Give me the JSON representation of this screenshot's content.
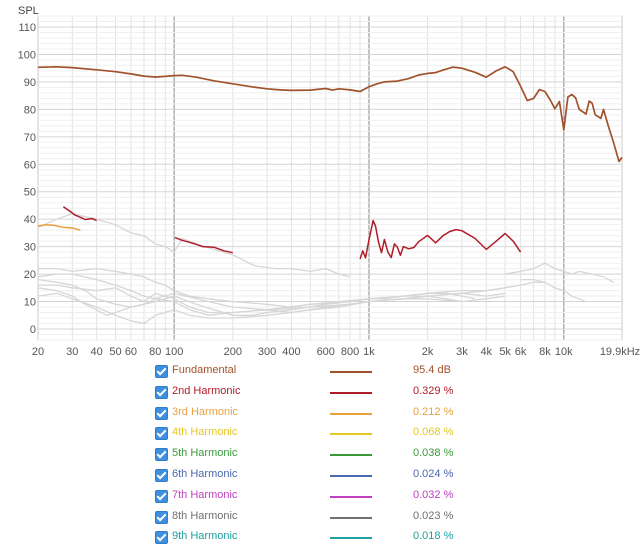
{
  "chart_data": {
    "type": "line",
    "title": "",
    "ylabel": "SPL",
    "xlabel": "",
    "x_scale": "log",
    "xlim": [
      20,
      19900
    ],
    "ylim": [
      -4,
      114
    ],
    "grid": true,
    "x_ticks": [
      {
        "v": 20,
        "label": "20"
      },
      {
        "v": 30,
        "label": "30"
      },
      {
        "v": 40,
        "label": "40"
      },
      {
        "v": 50,
        "label": "50"
      },
      {
        "v": 60,
        "label": "60"
      },
      {
        "v": 80,
        "label": "80"
      },
      {
        "v": 100,
        "label": "100"
      },
      {
        "v": 200,
        "label": "200"
      },
      {
        "v": 300,
        "label": "300"
      },
      {
        "v": 400,
        "label": "400"
      },
      {
        "v": 600,
        "label": "600"
      },
      {
        "v": 800,
        "label": "800"
      },
      {
        "v": 1000,
        "label": "1k"
      },
      {
        "v": 2000,
        "label": "2k"
      },
      {
        "v": 3000,
        "label": "3k"
      },
      {
        "v": 4000,
        "label": "4k"
      },
      {
        "v": 5000,
        "label": "5k"
      },
      {
        "v": 6000,
        "label": "6k"
      },
      {
        "v": 8000,
        "label": "8k"
      },
      {
        "v": 10000,
        "label": "10k"
      },
      {
        "v": 19900,
        "label": "19.9kHz"
      }
    ],
    "y_ticks": [
      0,
      10,
      20,
      30,
      40,
      50,
      60,
      70,
      80,
      90,
      100,
      110
    ],
    "series": [
      {
        "name": "Fundamental",
        "color": "#a0522d",
        "value_text": "95.4 dB",
        "points": [
          [
            20,
            95.3
          ],
          [
            25,
            95.5
          ],
          [
            30,
            95.2
          ],
          [
            40,
            94.4
          ],
          [
            50,
            93.7
          ],
          [
            60,
            92.9
          ],
          [
            70,
            92.1
          ],
          [
            80,
            91.8
          ],
          [
            90,
            92.0
          ],
          [
            100,
            92.3
          ],
          [
            110,
            92.4
          ],
          [
            130,
            91.7
          ],
          [
            160,
            90.4
          ],
          [
            200,
            89.3
          ],
          [
            250,
            88.2
          ],
          [
            300,
            87.5
          ],
          [
            350,
            87.1
          ],
          [
            400,
            86.9
          ],
          [
            500,
            87.0
          ],
          [
            600,
            87.6
          ],
          [
            650,
            87.0
          ],
          [
            700,
            87.5
          ],
          [
            800,
            87.1
          ],
          [
            900,
            86.5
          ],
          [
            1000,
            88.2
          ],
          [
            1100,
            89.3
          ],
          [
            1200,
            90.0
          ],
          [
            1400,
            90.3
          ],
          [
            1600,
            91.2
          ],
          [
            1800,
            92.5
          ],
          [
            2000,
            93.1
          ],
          [
            2200,
            93.4
          ],
          [
            2400,
            94.3
          ],
          [
            2700,
            95.4
          ],
          [
            3000,
            95.0
          ],
          [
            3500,
            93.5
          ],
          [
            4000,
            91.7
          ],
          [
            4500,
            94.0
          ],
          [
            5000,
            95.5
          ],
          [
            5500,
            93.7
          ],
          [
            6000,
            88.4
          ],
          [
            6500,
            83.2
          ],
          [
            7000,
            84.0
          ],
          [
            7500,
            87.2
          ],
          [
            8000,
            86.5
          ],
          [
            8500,
            83.6
          ],
          [
            9000,
            80.2
          ],
          [
            9500,
            82.9
          ],
          [
            10000,
            72.5
          ],
          [
            10500,
            84.5
          ],
          [
            11000,
            85.4
          ],
          [
            11500,
            84.2
          ],
          [
            12000,
            80.0
          ],
          [
            13000,
            78.3
          ],
          [
            13500,
            83.0
          ],
          [
            14000,
            82.2
          ],
          [
            14500,
            78.0
          ],
          [
            15500,
            76.7
          ],
          [
            16000,
            80.0
          ],
          [
            17000,
            73.5
          ],
          [
            18000,
            68.0
          ],
          [
            19200,
            61.0
          ],
          [
            19900,
            62.5
          ]
        ]
      },
      {
        "name": "2nd Harmonic",
        "color": "#b01c28",
        "value_text": "0.329 %",
        "points": [
          [
            27,
            44.5
          ],
          [
            29,
            43.0
          ],
          [
            31,
            41.5
          ],
          [
            33,
            40.7
          ],
          [
            35,
            39.9
          ],
          [
            38,
            40.2
          ],
          [
            40,
            39.5
          ],
          [
            101,
            33.3
          ],
          [
            110,
            32.3
          ],
          [
            120,
            31.6
          ],
          [
            130,
            30.8
          ],
          [
            140,
            30.0
          ],
          [
            160,
            29.8
          ],
          [
            180,
            28.5
          ],
          [
            200,
            27.8
          ],
          [
            900,
            25.5
          ],
          [
            930,
            28.5
          ],
          [
            960,
            25.9
          ],
          [
            1000,
            32.5
          ],
          [
            1050,
            39.5
          ],
          [
            1080,
            37.5
          ],
          [
            1120,
            31.5
          ],
          [
            1160,
            27.8
          ],
          [
            1200,
            32.6
          ],
          [
            1250,
            28.0
          ],
          [
            1300,
            26.0
          ],
          [
            1350,
            31.0
          ],
          [
            1400,
            29.8
          ],
          [
            1450,
            26.8
          ],
          [
            1500,
            30.0
          ],
          [
            1600,
            29.2
          ],
          [
            1700,
            29.7
          ],
          [
            1800,
            31.8
          ],
          [
            2000,
            34.1
          ],
          [
            2200,
            31.4
          ],
          [
            2400,
            34.0
          ],
          [
            2600,
            35.5
          ],
          [
            2800,
            36.2
          ],
          [
            3000,
            35.8
          ],
          [
            3500,
            33.0
          ],
          [
            4000,
            29.0
          ],
          [
            4500,
            32.0
          ],
          [
            5000,
            34.8
          ],
          [
            5500,
            32.0
          ],
          [
            6000,
            28.0
          ]
        ]
      },
      {
        "name": "3rd Harmonic",
        "color": "#e8a040",
        "value_text": "0.212 %",
        "points": [
          [
            20,
            37.5
          ],
          [
            22,
            38.0
          ],
          [
            24,
            37.8
          ],
          [
            27,
            37.0
          ],
          [
            30,
            36.8
          ],
          [
            33,
            36.0
          ]
        ]
      },
      {
        "name": "4th Harmonic",
        "color": "#e5c820",
        "value_text": "0.068 %",
        "points": []
      },
      {
        "name": "5th Harmonic",
        "color": "#3a9a3a",
        "value_text": "0.038 %",
        "points": []
      },
      {
        "name": "6th Harmonic",
        "color": "#4a68b0",
        "value_text": "0.024 %",
        "points": []
      },
      {
        "name": "7th Harmonic",
        "color": "#c040c0",
        "value_text": "0.032 %",
        "points": []
      },
      {
        "name": "8th Harmonic",
        "color": "#707070",
        "value_text": "0.023 %",
        "points": []
      },
      {
        "name": "9th Harmonic",
        "color": "#20a0a0",
        "value_text": "0.018 %",
        "points": []
      }
    ],
    "background_traces": [
      [
        [
          20,
          37
        ],
        [
          25,
          40
        ],
        [
          30,
          42
        ],
        [
          40,
          40
        ],
        [
          50,
          38
        ],
        [
          60,
          35
        ],
        [
          70,
          34
        ],
        [
          80,
          31
        ],
        [
          90,
          30
        ],
        [
          100,
          28
        ],
        [
          110,
          33
        ],
        [
          130,
          31
        ],
        [
          160,
          29
        ],
        [
          200,
          27
        ],
        [
          260,
          23
        ],
        [
          330,
          22
        ],
        [
          400,
          22
        ],
        [
          500,
          21
        ],
        [
          600,
          22
        ],
        [
          700,
          20
        ],
        [
          800,
          19
        ]
      ],
      [
        [
          20,
          22
        ],
        [
          25,
          22
        ],
        [
          30,
          21
        ],
        [
          40,
          22
        ],
        [
          50,
          21
        ],
        [
          60,
          20
        ],
        [
          70,
          19
        ],
        [
          80,
          17
        ],
        [
          90,
          16
        ],
        [
          100,
          14
        ],
        [
          120,
          12
        ],
        [
          150,
          11
        ],
        [
          200,
          10
        ],
        [
          300,
          9
        ],
        [
          400,
          8
        ],
        [
          500,
          9
        ],
        [
          700,
          10
        ],
        [
          1000,
          11
        ],
        [
          1500,
          12
        ],
        [
          2000,
          13
        ],
        [
          3000,
          14
        ],
        [
          4000,
          14
        ],
        [
          5000,
          15
        ],
        [
          6000,
          16
        ],
        [
          7000,
          17
        ],
        [
          8000,
          17
        ]
      ],
      [
        [
          20,
          18
        ],
        [
          25,
          17
        ],
        [
          30,
          16
        ],
        [
          35,
          14
        ],
        [
          40,
          11
        ],
        [
          50,
          9
        ],
        [
          60,
          8
        ],
        [
          70,
          9
        ],
        [
          80,
          11
        ],
        [
          100,
          13
        ],
        [
          150,
          10
        ],
        [
          200,
          8
        ],
        [
          300,
          7
        ],
        [
          400,
          6
        ],
        [
          500,
          7
        ],
        [
          700,
          8
        ],
        [
          1000,
          10
        ],
        [
          1500,
          11
        ],
        [
          2000,
          12
        ],
        [
          3000,
          13
        ],
        [
          4000,
          12
        ],
        [
          5000,
          13
        ]
      ],
      [
        [
          20,
          15
        ],
        [
          25,
          14
        ],
        [
          30,
          12
        ],
        [
          35,
          9
        ],
        [
          40,
          7
        ],
        [
          45,
          5
        ],
        [
          50,
          6
        ],
        [
          60,
          8
        ],
        [
          80,
          10
        ],
        [
          100,
          12
        ],
        [
          130,
          9
        ],
        [
          160,
          7
        ],
        [
          200,
          5
        ],
        [
          250,
          5
        ],
        [
          300,
          6
        ],
        [
          400,
          7
        ],
        [
          600,
          9
        ],
        [
          800,
          10
        ],
        [
          1000,
          11
        ],
        [
          1500,
          12
        ],
        [
          2000,
          13
        ],
        [
          2500,
          13
        ],
        [
          3000,
          12
        ],
        [
          3500,
          11
        ]
      ],
      [
        [
          20,
          12
        ],
        [
          25,
          13
        ],
        [
          30,
          11
        ],
        [
          40,
          8
        ],
        [
          50,
          5
        ],
        [
          60,
          3
        ],
        [
          70,
          2
        ],
        [
          80,
          5
        ],
        [
          100,
          7
        ],
        [
          120,
          5
        ],
        [
          150,
          4
        ],
        [
          200,
          4
        ],
        [
          300,
          5
        ],
        [
          400,
          6
        ],
        [
          600,
          8
        ],
        [
          1000,
          10
        ],
        [
          1500,
          11
        ],
        [
          2000,
          12
        ],
        [
          3000,
          13
        ],
        [
          4000,
          14
        ],
        [
          5000,
          15
        ]
      ],
      [
        [
          20,
          16
        ],
        [
          25,
          16
        ],
        [
          30,
          15
        ],
        [
          40,
          14
        ],
        [
          50,
          15
        ],
        [
          60,
          12
        ],
        [
          70,
          10
        ],
        [
          80,
          13
        ],
        [
          100,
          11
        ],
        [
          120,
          8
        ],
        [
          150,
          6
        ],
        [
          200,
          6
        ],
        [
          300,
          7
        ],
        [
          500,
          8
        ],
        [
          800,
          9
        ],
        [
          1000,
          10
        ],
        [
          1500,
          11
        ],
        [
          2000,
          11
        ],
        [
          3000,
          10
        ],
        [
          4000,
          11
        ],
        [
          5000,
          12
        ]
      ],
      [
        [
          20,
          19
        ],
        [
          25,
          20
        ],
        [
          30,
          20
        ],
        [
          40,
          18
        ],
        [
          50,
          16
        ],
        [
          60,
          14
        ],
        [
          70,
          12
        ],
        [
          80,
          11
        ],
        [
          100,
          10
        ],
        [
          120,
          7
        ],
        [
          150,
          5
        ],
        [
          200,
          6
        ],
        [
          300,
          7
        ],
        [
          500,
          9
        ],
        [
          800,
          10
        ],
        [
          1000,
          11
        ],
        [
          1200,
          11
        ],
        [
          1500,
          12
        ],
        [
          2000,
          12
        ],
        [
          2500,
          11
        ],
        [
          3000,
          10
        ]
      ],
      [
        [
          5000,
          20
        ],
        [
          6000,
          21
        ],
        [
          7000,
          22
        ],
        [
          8000,
          24
        ],
        [
          9000,
          22
        ],
        [
          10000,
          21
        ],
        [
          11000,
          20
        ],
        [
          12000,
          21
        ],
        [
          14000,
          20
        ],
        [
          16000,
          19
        ],
        [
          18000,
          17
        ]
      ],
      [
        [
          6000,
          18
        ],
        [
          7000,
          18
        ],
        [
          8000,
          17
        ],
        [
          9000,
          15
        ],
        [
          10000,
          14
        ],
        [
          11000,
          12
        ],
        [
          13000,
          10
        ]
      ]
    ]
  },
  "legend": {
    "items": [
      {
        "name": "Fundamental",
        "value": "95.4 dB",
        "color": "#a0522d"
      },
      {
        "name": "2nd Harmonic",
        "value": "0.329 %",
        "color": "#b01c28"
      },
      {
        "name": "3rd Harmonic",
        "value": "0.212 %",
        "color": "#e8a040"
      },
      {
        "name": "4th Harmonic",
        "value": "0.068 %",
        "color": "#e5c820"
      },
      {
        "name": "5th Harmonic",
        "value": "0.038 %",
        "color": "#3a9a3a"
      },
      {
        "name": "6th Harmonic",
        "value": "0.024 %",
        "color": "#4a68b0"
      },
      {
        "name": "7th Harmonic",
        "value": "0.032 %",
        "color": "#c040c0"
      },
      {
        "name": "8th Harmonic",
        "value": "0.023 %",
        "color": "#707070"
      },
      {
        "name": "9th Harmonic",
        "value": "0.018 %",
        "color": "#20a0a0"
      }
    ]
  }
}
